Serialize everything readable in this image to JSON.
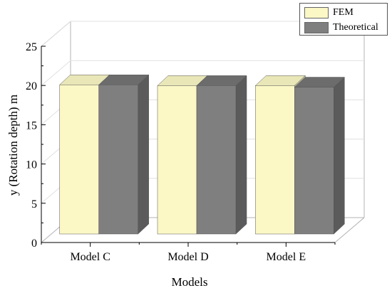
{
  "chart_data": {
    "type": "bar",
    "categories": [
      "Model C",
      "Model D",
      "Model E"
    ],
    "series": [
      {
        "name": "FEM",
        "values": [
          19,
          18.9,
          18.9
        ],
        "color": "#fbf8c6"
      },
      {
        "name": "Theoretical",
        "values": [
          19,
          18.9,
          18.7
        ],
        "color": "#7f7f7f"
      }
    ],
    "xlabel": "Models",
    "ylabel": "y (Rotation depth) m",
    "ylim": [
      0,
      25
    ],
    "yticks": [
      "0",
      "5",
      "10",
      "15",
      "20",
      "25"
    ],
    "grid": true,
    "legend_position": "top-right",
    "style": "3d-bar"
  }
}
